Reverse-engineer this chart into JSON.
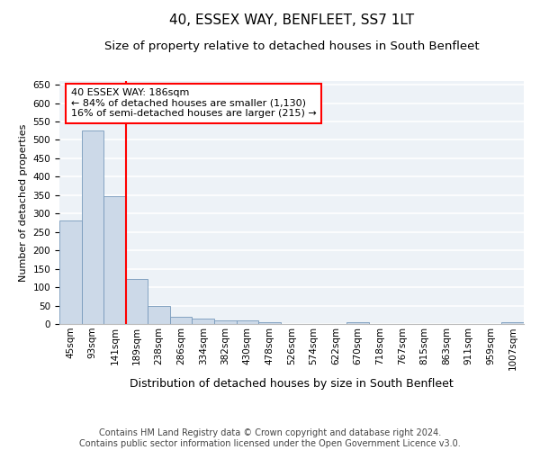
{
  "title": "40, ESSEX WAY, BENFLEET, SS7 1LT",
  "subtitle": "Size of property relative to detached houses in South Benfleet",
  "xlabel": "Distribution of detached houses by size in South Benfleet",
  "ylabel": "Number of detached properties",
  "bar_values": [
    280,
    525,
    347,
    122,
    48,
    20,
    15,
    10,
    10,
    5,
    0,
    0,
    0,
    5,
    0,
    0,
    0,
    0,
    0,
    0,
    5
  ],
  "bin_labels": [
    "45sqm",
    "93sqm",
    "141sqm",
    "189sqm",
    "238sqm",
    "286sqm",
    "334sqm",
    "382sqm",
    "430sqm",
    "478sqm",
    "526sqm",
    "574sqm",
    "622sqm",
    "670sqm",
    "718sqm",
    "767sqm",
    "815sqm",
    "863sqm",
    "911sqm",
    "959sqm",
    "1007sqm"
  ],
  "bar_color": "#ccd9e8",
  "bar_edge_color": "#7799bb",
  "annotation_text": "40 ESSEX WAY: 186sqm\n← 84% of detached houses are smaller (1,130)\n16% of semi-detached houses are larger (215) →",
  "annotation_box_color": "white",
  "annotation_box_edge": "red",
  "footer_text": "Contains HM Land Registry data © Crown copyright and database right 2024.\nContains public sector information licensed under the Open Government Licence v3.0.",
  "ylim": [
    0,
    660
  ],
  "yticks": [
    0,
    50,
    100,
    150,
    200,
    250,
    300,
    350,
    400,
    450,
    500,
    550,
    600,
    650
  ],
  "bg_color": "#edf2f7",
  "grid_color": "white",
  "title_fontsize": 11,
  "subtitle_fontsize": 9.5,
  "xlabel_fontsize": 9,
  "ylabel_fontsize": 8,
  "footer_fontsize": 7,
  "tick_fontsize": 7.5,
  "annot_fontsize": 8
}
